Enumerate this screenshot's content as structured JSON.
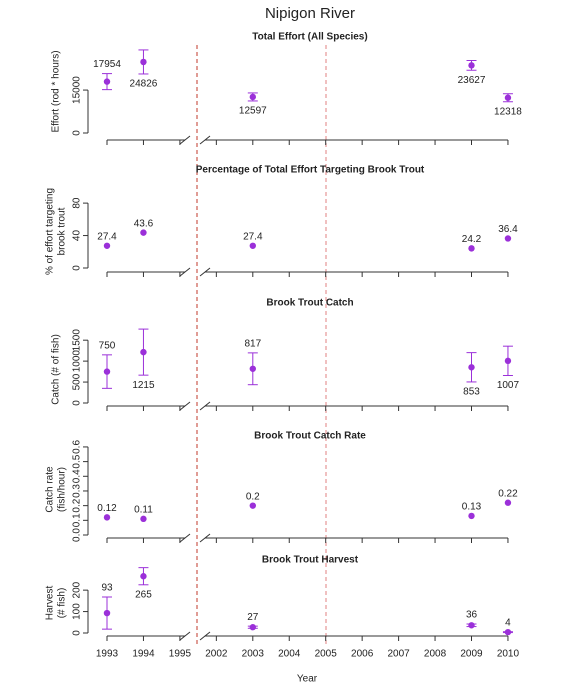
{
  "title": "Nipigon River",
  "x_label": "Year",
  "categories": [
    "1993",
    "1994",
    "1995",
    "2002",
    "2003",
    "2004",
    "2005",
    "2006",
    "2007",
    "2008",
    "2009",
    "2010"
  ],
  "chart_data": [
    {
      "type": "errorbar",
      "title": "Total Effort (All Species)",
      "y_label": [
        "Effort (rod * hours)"
      ],
      "color": "#9b30d9",
      "values": [
        17954,
        24826,
        null,
        null,
        12597,
        null,
        null,
        null,
        null,
        null,
        23627,
        12318
      ],
      "errors": [
        2800,
        4200,
        null,
        null,
        1400,
        null,
        null,
        null,
        null,
        null,
        1700,
        1400
      ],
      "ylim": [
        0,
        29000
      ],
      "yticks": [
        0,
        15000
      ]
    },
    {
      "type": "errorbar",
      "title": "Percentage of Total Effort Targeting Brook Trout",
      "y_label": [
        "% of effort targeting",
        "brook trout"
      ],
      "color": "#9b30d9",
      "values": [
        27.4,
        43.6,
        null,
        null,
        27.4,
        null,
        null,
        null,
        null,
        null,
        24.2,
        36.4
      ],
      "ylim": [
        0,
        90
      ],
      "yticks": [
        0,
        40,
        80
      ]
    },
    {
      "type": "errorbar",
      "title": "Brook Trout Catch",
      "y_label": [
        "Catch (# of fish)"
      ],
      "color": "#9b30d9",
      "values": [
        750,
        1215,
        null,
        null,
        817,
        null,
        null,
        null,
        null,
        null,
        853,
        1007
      ],
      "errors": [
        400,
        550,
        null,
        null,
        380,
        null,
        null,
        null,
        null,
        null,
        350,
        350
      ],
      "ylim": [
        0,
        1600
      ],
      "yticks": [
        0,
        500,
        1000,
        1500
      ]
    },
    {
      "type": "errorbar",
      "title": "Brook Trout Catch Rate",
      "y_label": [
        "Catch rate",
        "(fish/hour)"
      ],
      "color": "#9b30d9",
      "values": [
        0.12,
        0.11,
        null,
        null,
        0.2,
        null,
        null,
        null,
        null,
        null,
        0.13,
        0.22
      ],
      "ylim": [
        0,
        0.62
      ],
      "yticks": [
        {
          "value": 0,
          "label": "0.0"
        },
        0.1,
        0.2,
        0.3,
        0.4,
        0.5,
        0.6
      ]
    },
    {
      "type": "errorbar",
      "title": "Brook Trout Harvest",
      "y_label": [
        "Harvest",
        "(# fish)"
      ],
      "color": "#9b30d9",
      "values": [
        93,
        265,
        null,
        null,
        27,
        null,
        null,
        null,
        null,
        null,
        36,
        4
      ],
      "errors": [
        75,
        40,
        null,
        null,
        5,
        null,
        null,
        null,
        null,
        null,
        6,
        2
      ],
      "ylim": [
        0,
        280
      ],
      "yticks": [
        0,
        100,
        200
      ]
    }
  ]
}
